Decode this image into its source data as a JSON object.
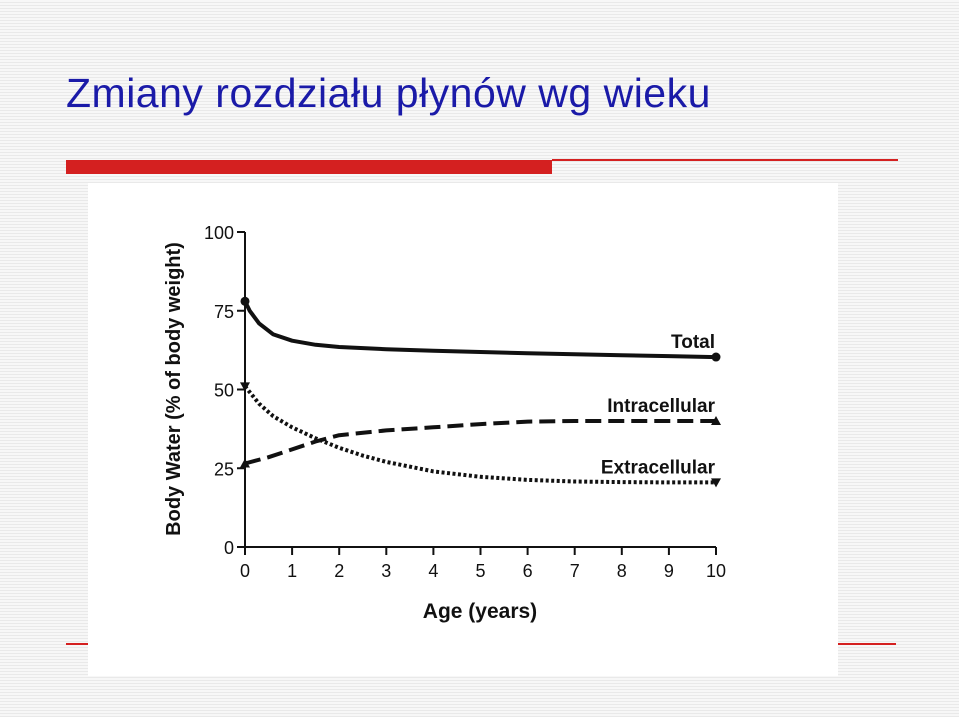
{
  "slide": {
    "title": "Zmiany rozdziału płynów wg wieku",
    "accent_color": "#d42020",
    "title_color": "#1a1aa8"
  },
  "chart_data": {
    "type": "line",
    "title": "",
    "xlabel": "Age (years)",
    "ylabel": "Body Water (% of body weight)",
    "xlim": [
      0,
      10
    ],
    "ylim": [
      0,
      100
    ],
    "x_ticks": [
      "0",
      "1",
      "2",
      "3",
      "4",
      "5",
      "6",
      "7",
      "8",
      "9",
      "10"
    ],
    "y_ticks": [
      "0",
      "25",
      "50",
      "75",
      "100"
    ],
    "grid": false,
    "series": [
      {
        "name": "Total",
        "style": "solid",
        "marker": "circle",
        "x": [
          0,
          0.1,
          0.3,
          0.6,
          1,
          1.5,
          2,
          3,
          4,
          5,
          6,
          7,
          8,
          9,
          10
        ],
        "y": [
          78,
          75,
          71,
          67.5,
          65.5,
          64.2,
          63.5,
          62.8,
          62.3,
          61.9,
          61.5,
          61.2,
          60.9,
          60.6,
          60.3
        ]
      },
      {
        "name": "Intracellular",
        "style": "dashed",
        "marker": "triangle-up",
        "x": [
          0,
          0.5,
          1,
          1.5,
          2,
          3,
          4,
          5,
          6,
          7,
          8,
          9,
          10
        ],
        "y": [
          26.5,
          28.5,
          31,
          33.5,
          35.5,
          37,
          38,
          39,
          39.8,
          40,
          40,
          40,
          40
        ]
      },
      {
        "name": "Extracellular",
        "style": "dotted",
        "marker": "triangle-down",
        "x": [
          0,
          0.3,
          0.6,
          1,
          1.5,
          2,
          2.5,
          3,
          4,
          5,
          6,
          7,
          8,
          9,
          10
        ],
        "y": [
          51,
          45.5,
          41.5,
          38,
          34.5,
          31.5,
          29,
          27,
          24,
          22.3,
          21.3,
          20.8,
          20.6,
          20.5,
          20.5
        ]
      }
    ]
  }
}
